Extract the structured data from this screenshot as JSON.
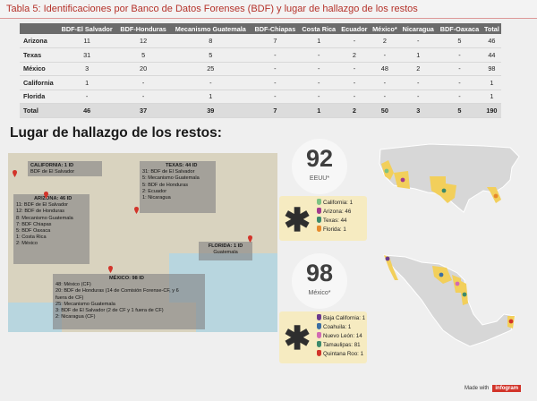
{
  "header": {
    "title": "Tabla 5:  Identificaciones por Banco de Datos Forenses (BDF) y lugar de hallazgo de los restos"
  },
  "table": {
    "columns": [
      "",
      "BDF-El Salvador",
      "BDF-Honduras",
      "Mecanismo Guatemala",
      "BDF-Chiapas",
      "Costa Rica",
      "Ecuador",
      "México*",
      "Nicaragua",
      "BDF-Oaxaca",
      "Total"
    ],
    "rows": [
      [
        "Arizona",
        "11",
        "12",
        "8",
        "7",
        "1",
        "-",
        "2",
        "-",
        "5",
        "46"
      ],
      [
        "Texas",
        "31",
        "5",
        "5",
        "-",
        "-",
        "2",
        "-",
        "1",
        "-",
        "44"
      ],
      [
        "México",
        "3",
        "20",
        "25",
        "-",
        "-",
        "-",
        "48",
        "2",
        "-",
        "98"
      ],
      [
        "California",
        "1",
        "-",
        "-",
        "-",
        "-",
        "-",
        "-",
        "-",
        "-",
        "1"
      ],
      [
        "Florida",
        "-",
        "-",
        "1",
        "-",
        "-",
        "-",
        "-",
        "-",
        "-",
        "1"
      ],
      [
        "Total",
        "46",
        "37",
        "39",
        "7",
        "1",
        "2",
        "50",
        "3",
        "5",
        "190"
      ]
    ]
  },
  "section_title": "Lugar de hallazgo de los restos:",
  "map_notes": {
    "california": {
      "title": "CALIFORNIA: 1 ID",
      "lines": [
        "BDF de El Salvador"
      ]
    },
    "arizona": {
      "title": "ARIZONA: 46 ID",
      "lines": [
        "11: BDF de El Salvador",
        "12: BDF de Honduras",
        "8: Mecanismo Guatemala",
        "7: BDF Chiapas",
        "5: BDF Oaxaca",
        "1: Costa Rica",
        "2: México"
      ]
    },
    "texas": {
      "title": "TEXAS: 44 ID",
      "lines": [
        "31: BDF de El Salvador",
        "5: Mecanismo Guatemala",
        "5: BDF de Honduras",
        "2: Ecuador",
        "1: Nicaragua"
      ]
    },
    "florida": {
      "title": "FLORIDA: 1 ID",
      "lines": [
        "Guatemala"
      ]
    },
    "mexico": {
      "title": "MÉXICO: 98 ID",
      "lines": [
        "48: México (CF)",
        "20: BDF de Honduras (14 de Comisión Forense-CF, y 6",
        "    fuera de CF)",
        "25: Mecanismo Guatemala",
        "3: BDF de El Salvador (2 de CF y 1 fuera de CF)",
        "2: Nicaragua (CF)"
      ]
    }
  },
  "usa_badge": {
    "number": "92",
    "label": "EEUU*"
  },
  "usa_list": [
    {
      "text": "California: 1",
      "color": "#7dc383"
    },
    {
      "text": "Arizona: 46",
      "color": "#a33a8e"
    },
    {
      "text": "Texas: 44",
      "color": "#3c8a6b"
    },
    {
      "text": "Florida: 1",
      "color": "#e78a2c"
    }
  ],
  "mexico_badge": {
    "number": "98",
    "label": "México*"
  },
  "mexico_list": [
    {
      "text": "Baja California: 1",
      "color": "#6b3a8e"
    },
    {
      "text": "Coahuila: 1",
      "color": "#3c6ea3"
    },
    {
      "text": "Nuevo León: 14",
      "color": "#d26ab3"
    },
    {
      "text": "Tamaulipas: 81",
      "color": "#3c8a6b"
    },
    {
      "text": "Quintana Roo: 1",
      "color": "#d2342a"
    }
  ],
  "footer": {
    "made_with": "Made with",
    "brand": "infogram"
  }
}
